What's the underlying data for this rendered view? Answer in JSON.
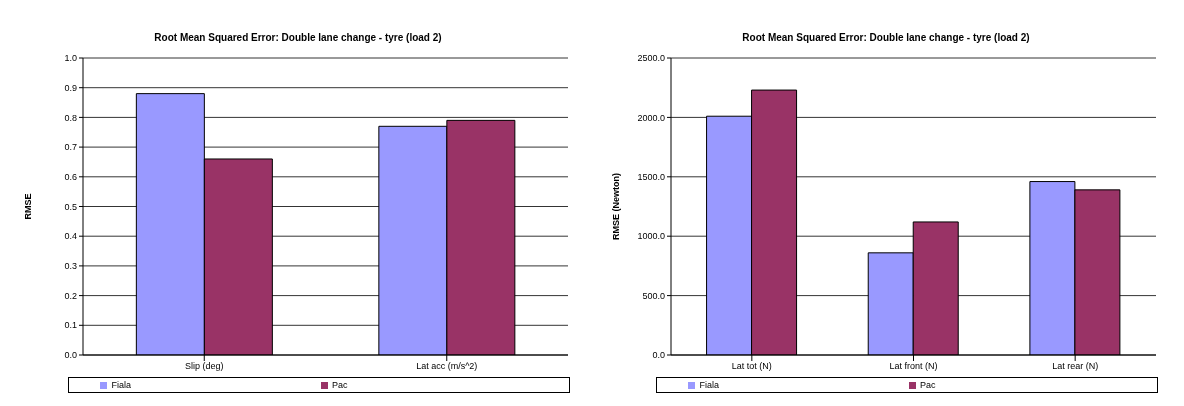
{
  "chart_data": [
    {
      "type": "bar",
      "title": "Root Mean Squared Error: Double lane change - tyre (load 2)",
      "ylabel": "RMSE",
      "categories": [
        "Slip (deg)",
        "Lat acc (m/s^2)"
      ],
      "series": [
        {
          "name": "Fiala",
          "color": "#9999ff",
          "values": [
            0.88,
            0.77
          ]
        },
        {
          "name": "Pac",
          "color": "#993366",
          "values": [
            0.66,
            0.79
          ]
        }
      ],
      "ylim": [
        0,
        1
      ],
      "yticks": [
        {
          "value": 0,
          "label": "0.0"
        },
        0.1,
        0.2,
        0.3,
        0.4,
        0.5,
        0.6,
        0.7,
        0.8,
        0.9,
        {
          "value": 1,
          "label": "1.0"
        }
      ],
      "grid": "y",
      "legend": "bottom"
    },
    {
      "type": "bar",
      "title": "Root Mean Squared Error: Double lane change - tyre (load 2)",
      "ylabel": "RMSE (Newton)",
      "categories": [
        "Lat tot (N)",
        "Lat front (N)",
        "Lat rear (N)"
      ],
      "series": [
        {
          "name": "Fiala",
          "color": "#9999ff",
          "values": [
            2010,
            860,
            1460
          ]
        },
        {
          "name": "Pac",
          "color": "#993366",
          "values": [
            2230,
            1120,
            1390
          ]
        }
      ],
      "ylim": [
        0,
        2500
      ],
      "yticks": [
        {
          "value": 0,
          "label": "0.0"
        },
        {
          "value": 500,
          "label": "500.0"
        },
        {
          "value": 1000,
          "label": "1000.0"
        },
        {
          "value": 1500,
          "label": "1500.0"
        },
        {
          "value": 2000,
          "label": "2000.0"
        },
        {
          "value": 2500,
          "label": "2500.0"
        }
      ],
      "grid": "y",
      "legend": "bottom"
    }
  ]
}
